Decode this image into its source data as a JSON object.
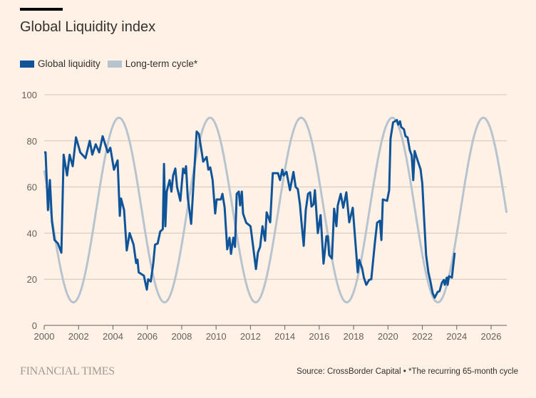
{
  "title": "Global Liquidity index",
  "legend": [
    {
      "label": "Global liquidity",
      "color": "#0F5499"
    },
    {
      "label": "Long-term cycle*",
      "color": "#B7C3CF"
    }
  ],
  "footer": {
    "brand": "FINANCIAL TIMES",
    "source": "Source: CrossBorder Capital • *The recurring 65-month cycle"
  },
  "chart_data": {
    "type": "line",
    "title": "Global Liquidity index",
    "xlabel": "",
    "ylabel": "",
    "xlim": [
      2000,
      2026.9
    ],
    "ylim": [
      0,
      100
    ],
    "xticks": [
      2000,
      2002,
      2004,
      2006,
      2008,
      2010,
      2012,
      2014,
      2016,
      2018,
      2020,
      2022,
      2024,
      2026
    ],
    "yticks": [
      0,
      20,
      40,
      60,
      80,
      100
    ],
    "grid": true,
    "legend_position": "top-left",
    "series": [
      {
        "name": "Global liquidity",
        "color": "#0F5499",
        "points": [
          [
            2000.0,
            75
          ],
          [
            2000.08,
            75
          ],
          [
            2000.22,
            50
          ],
          [
            2000.33,
            63
          ],
          [
            2000.45,
            45
          ],
          [
            2000.6,
            37
          ],
          [
            2000.8,
            35.5
          ],
          [
            2001.0,
            31.5
          ],
          [
            2001.13,
            74
          ],
          [
            2001.33,
            65
          ],
          [
            2001.48,
            74
          ],
          [
            2001.66,
            69
          ],
          [
            2001.85,
            81.5
          ],
          [
            2002.1,
            75
          ],
          [
            2002.4,
            72.5
          ],
          [
            2002.65,
            80
          ],
          [
            2002.8,
            74
          ],
          [
            2003.0,
            78.5
          ],
          [
            2003.2,
            75
          ],
          [
            2003.4,
            82
          ],
          [
            2003.7,
            75
          ],
          [
            2003.85,
            77
          ],
          [
            2004.06,
            67.5
          ],
          [
            2004.27,
            71.5
          ],
          [
            2004.4,
            47.5
          ],
          [
            2004.47,
            55
          ],
          [
            2004.65,
            50
          ],
          [
            2004.8,
            32.5
          ],
          [
            2004.97,
            40
          ],
          [
            2005.2,
            35
          ],
          [
            2005.35,
            27
          ],
          [
            2005.43,
            28.5
          ],
          [
            2005.5,
            23
          ],
          [
            2005.8,
            21.5
          ],
          [
            2005.97,
            15.5
          ],
          [
            2006.05,
            20
          ],
          [
            2006.2,
            19
          ],
          [
            2006.35,
            27
          ],
          [
            2006.45,
            35
          ],
          [
            2006.6,
            35.5
          ],
          [
            2006.75,
            40.7
          ],
          [
            2006.9,
            41.7
          ],
          [
            2006.97,
            70
          ],
          [
            2007.05,
            43
          ],
          [
            2007.13,
            58
          ],
          [
            2007.3,
            63
          ],
          [
            2007.4,
            58
          ],
          [
            2007.5,
            65
          ],
          [
            2007.63,
            68
          ],
          [
            2007.73,
            60
          ],
          [
            2007.92,
            54
          ],
          [
            2008.08,
            68
          ],
          [
            2008.18,
            66
          ],
          [
            2008.25,
            69
          ],
          [
            2008.35,
            55.5
          ],
          [
            2008.55,
            44
          ],
          [
            2008.7,
            63
          ],
          [
            2008.87,
            84
          ],
          [
            2009.0,
            83
          ],
          [
            2009.25,
            71
          ],
          [
            2009.45,
            73
          ],
          [
            2009.55,
            67.5
          ],
          [
            2009.66,
            68.5
          ],
          [
            2009.8,
            63
          ],
          [
            2009.95,
            48.5
          ],
          [
            2010.03,
            54.6
          ],
          [
            2010.28,
            54.6
          ],
          [
            2010.37,
            57
          ],
          [
            2010.5,
            51
          ],
          [
            2010.65,
            33
          ],
          [
            2010.78,
            38
          ],
          [
            2010.87,
            31
          ],
          [
            2011.0,
            38
          ],
          [
            2011.1,
            34
          ],
          [
            2011.2,
            57
          ],
          [
            2011.32,
            58
          ],
          [
            2011.4,
            52
          ],
          [
            2011.5,
            58
          ],
          [
            2011.57,
            48.5
          ],
          [
            2011.75,
            44.5
          ],
          [
            2012.0,
            43
          ],
          [
            2012.03,
            41.5
          ],
          [
            2012.15,
            34.5
          ],
          [
            2012.32,
            24.4
          ],
          [
            2012.43,
            31.5
          ],
          [
            2012.56,
            34
          ],
          [
            2012.7,
            43
          ],
          [
            2012.85,
            36.7
          ],
          [
            2012.94,
            49
          ],
          [
            2013.15,
            44.7
          ],
          [
            2013.3,
            66
          ],
          [
            2013.6,
            66
          ],
          [
            2013.72,
            63
          ],
          [
            2013.85,
            67.5
          ],
          [
            2013.93,
            65
          ],
          [
            2014.1,
            66.5
          ],
          [
            2014.3,
            58.6
          ],
          [
            2014.5,
            66.5
          ],
          [
            2014.63,
            60
          ],
          [
            2014.76,
            59
          ],
          [
            2014.88,
            52.5
          ],
          [
            2014.97,
            44.7
          ],
          [
            2015.1,
            34.5
          ],
          [
            2015.22,
            50
          ],
          [
            2015.35,
            57
          ],
          [
            2015.47,
            57.7
          ],
          [
            2015.55,
            51.5
          ],
          [
            2015.67,
            52.5
          ],
          [
            2015.75,
            58.6
          ],
          [
            2015.92,
            40
          ],
          [
            2016.08,
            47.8
          ],
          [
            2016.25,
            26.8
          ],
          [
            2016.42,
            38.6
          ],
          [
            2016.5,
            38.6
          ],
          [
            2016.58,
            30.5
          ],
          [
            2016.74,
            29
          ],
          [
            2016.87,
            50.6
          ],
          [
            2017.0,
            43
          ],
          [
            2017.08,
            52
          ],
          [
            2017.25,
            57
          ],
          [
            2017.4,
            51
          ],
          [
            2017.58,
            57.7
          ],
          [
            2017.75,
            44.7
          ],
          [
            2017.95,
            51
          ],
          [
            2018.24,
            23
          ],
          [
            2018.33,
            28.4
          ],
          [
            2018.5,
            24.7
          ],
          [
            2018.6,
            20.7
          ],
          [
            2018.74,
            17.6
          ],
          [
            2018.9,
            19.7
          ],
          [
            2019.03,
            20
          ],
          [
            2019.24,
            36
          ],
          [
            2019.37,
            44.5
          ],
          [
            2019.53,
            45.4
          ],
          [
            2019.62,
            37
          ],
          [
            2019.7,
            54.6
          ],
          [
            2019.95,
            54
          ],
          [
            2020.07,
            58.6
          ],
          [
            2020.15,
            81
          ],
          [
            2020.3,
            88
          ],
          [
            2020.52,
            89
          ],
          [
            2020.6,
            87
          ],
          [
            2020.7,
            88.5
          ],
          [
            2020.77,
            86
          ],
          [
            2020.93,
            85
          ],
          [
            2021.02,
            82
          ],
          [
            2021.14,
            81.5
          ],
          [
            2021.27,
            76
          ],
          [
            2021.38,
            73.7
          ],
          [
            2021.47,
            63
          ],
          [
            2021.55,
            75.6
          ],
          [
            2021.68,
            72.5
          ],
          [
            2021.9,
            67.6
          ],
          [
            2022.0,
            61.4
          ],
          [
            2022.1,
            47
          ],
          [
            2022.22,
            30.5
          ],
          [
            2022.35,
            23
          ],
          [
            2022.47,
            19
          ],
          [
            2022.6,
            14
          ],
          [
            2022.72,
            12
          ],
          [
            2022.89,
            14.5
          ],
          [
            2023.0,
            14.8
          ],
          [
            2023.14,
            18.5
          ],
          [
            2023.25,
            19.7
          ],
          [
            2023.3,
            17.6
          ],
          [
            2023.42,
            20.7
          ],
          [
            2023.47,
            17.6
          ],
          [
            2023.55,
            21.3
          ],
          [
            2023.72,
            20.7
          ],
          [
            2023.88,
            31.5
          ]
        ]
      },
      {
        "name": "Long-term cycle*",
        "color": "#B7C3CF",
        "function": {
          "kind": "cosine",
          "mean": 50,
          "amplitude": 40,
          "period_years": 5.3,
          "peak_year": 2004.35,
          "from": 2000,
          "to": 2026.9
        }
      }
    ]
  }
}
